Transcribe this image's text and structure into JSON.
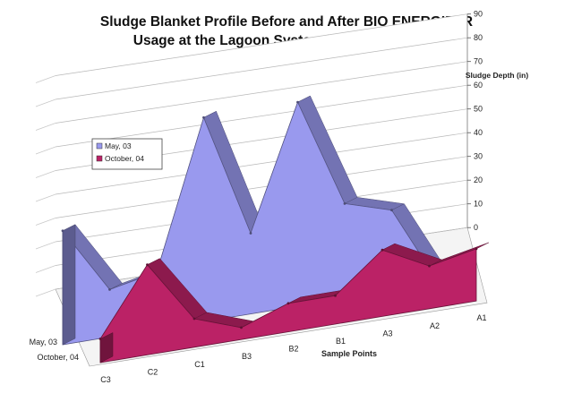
{
  "chart_data": {
    "type": "area",
    "title_lines": [
      "Sludge Blanket Profile Before and After BIO ENERGIZER",
      "Usage at the Lagoon System in Le Roy, Illinois"
    ],
    "xlabel": "Sample Points",
    "zlabel": "Sludge Depth (in)",
    "categories": [
      "C3",
      "C2",
      "C1",
      "B3",
      "B2",
      "B1",
      "A3",
      "A2",
      "A1"
    ],
    "yticks": [
      0,
      10,
      20,
      30,
      40,
      50,
      60,
      70,
      80,
      90
    ],
    "ylim": [
      0,
      90
    ],
    "grid": true,
    "legend_position": "upper-left",
    "series": [
      {
        "name": "May, 03",
        "color": "#9999ee",
        "values": [
          48,
          20,
          24,
          86,
          34,
          86,
          40,
          34,
          0
        ]
      },
      {
        "name": "October, 04",
        "color": "#bb2266",
        "values": [
          10,
          38,
          12,
          5,
          12,
          12,
          28,
          18,
          22
        ]
      }
    ]
  }
}
